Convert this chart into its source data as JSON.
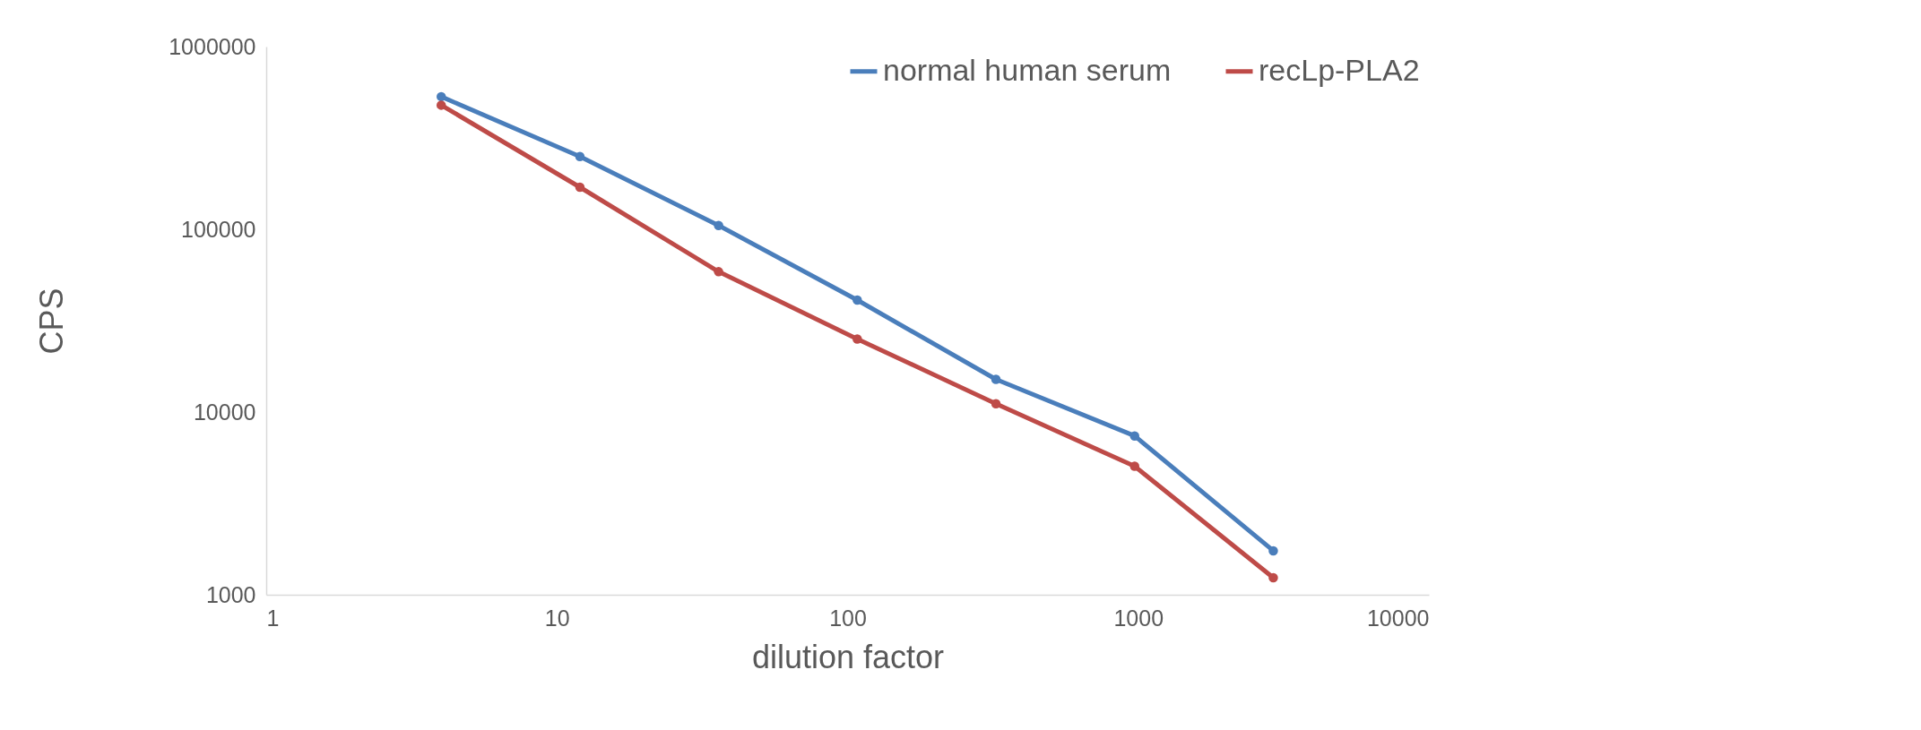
{
  "chart_data": {
    "type": "line",
    "xlabel": "dilution factor",
    "ylabel": "CPS",
    "log": "xy",
    "grid": false,
    "legend": "top right",
    "marker": "circle",
    "line_style": "solid",
    "x": [
      4,
      12,
      36,
      108,
      324,
      972,
      2916
    ],
    "xlim": [
      1,
      10000
    ],
    "xticks": [
      1,
      10,
      100,
      1000,
      10000
    ],
    "ylim": [
      1000,
      1000000
    ],
    "yticks": [
      1000,
      10000,
      100000,
      1000000
    ],
    "series": [
      {
        "name": "normal human serum",
        "color": "#4a7ebb",
        "values": [
          532000,
          250000,
          105000,
          41000,
          15100,
          7400,
          1740
        ]
      },
      {
        "name": "recLp-PLA2",
        "color": "#be4b48",
        "values": [
          478000,
          170000,
          58600,
          25100,
          11100,
          5050,
          1240
        ]
      }
    ]
  }
}
